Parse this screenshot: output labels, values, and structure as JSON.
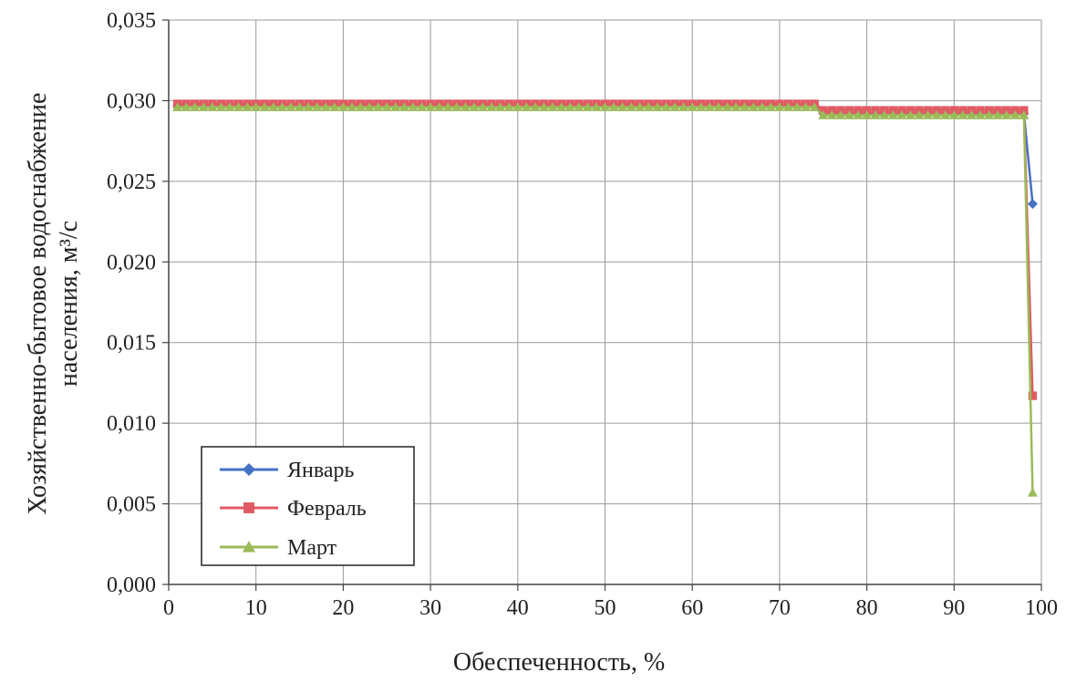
{
  "chart_data": {
    "type": "line",
    "xlabel": "Обеспеченность, %",
    "ylabel_lines": [
      "Хозяйственно-бытовое водоснабжение",
      "населения, м³/с"
    ],
    "xlim": [
      0,
      100
    ],
    "ylim": [
      0,
      0.035
    ],
    "x_ticks": [
      0,
      10,
      20,
      30,
      40,
      50,
      60,
      70,
      80,
      90,
      100
    ],
    "x_tick_labels": [
      "0",
      "10",
      "20",
      "30",
      "40",
      "50",
      "60",
      "70",
      "80",
      "90",
      "100"
    ],
    "y_ticks": [
      0,
      0.005,
      0.01,
      0.015,
      0.02,
      0.025,
      0.03,
      0.035
    ],
    "y_tick_labels": [
      "0,000",
      "0,005",
      "0,010",
      "0,015",
      "0,020",
      "0,025",
      "0,030",
      "0,035"
    ],
    "grid": true,
    "legend_position": "bottom-left",
    "series": [
      {
        "name": "Январь",
        "color": "#4472C4",
        "marker": "diamond",
        "x": [
          1,
          2,
          3,
          4,
          5,
          6,
          7,
          8,
          9,
          10,
          11,
          12,
          13,
          14,
          15,
          16,
          17,
          18,
          19,
          20,
          21,
          22,
          23,
          24,
          25,
          26,
          27,
          28,
          29,
          30,
          31,
          32,
          33,
          34,
          35,
          36,
          37,
          38,
          39,
          40,
          41,
          42,
          43,
          44,
          45,
          46,
          47,
          48,
          49,
          50,
          51,
          52,
          53,
          54,
          55,
          56,
          57,
          58,
          59,
          60,
          61,
          62,
          63,
          64,
          65,
          66,
          67,
          68,
          69,
          70,
          71,
          72,
          73,
          74,
          75,
          76,
          77,
          78,
          79,
          80,
          81,
          82,
          83,
          84,
          85,
          86,
          87,
          88,
          89,
          90,
          91,
          92,
          93,
          94,
          95,
          96,
          97,
          98,
          99
        ],
        "y": [
          0.0297,
          0.0297,
          0.0297,
          0.0297,
          0.0297,
          0.0297,
          0.0297,
          0.0297,
          0.0297,
          0.0297,
          0.0297,
          0.0297,
          0.0297,
          0.0297,
          0.0297,
          0.0297,
          0.0297,
          0.0297,
          0.0297,
          0.0297,
          0.0297,
          0.0297,
          0.0297,
          0.0297,
          0.0297,
          0.0297,
          0.0297,
          0.0297,
          0.0297,
          0.0297,
          0.0297,
          0.0297,
          0.0297,
          0.0297,
          0.0297,
          0.0297,
          0.0297,
          0.0297,
          0.0297,
          0.0297,
          0.0297,
          0.0297,
          0.0297,
          0.0297,
          0.0297,
          0.0297,
          0.0297,
          0.0297,
          0.0297,
          0.0297,
          0.0297,
          0.0297,
          0.0297,
          0.0297,
          0.0297,
          0.0297,
          0.0297,
          0.0297,
          0.0297,
          0.0297,
          0.0297,
          0.0297,
          0.0297,
          0.0297,
          0.0297,
          0.0297,
          0.0297,
          0.0297,
          0.0297,
          0.0297,
          0.0297,
          0.0297,
          0.0297,
          0.0297,
          0.0292,
          0.0292,
          0.0292,
          0.0292,
          0.0292,
          0.0292,
          0.0292,
          0.0292,
          0.0292,
          0.0292,
          0.0292,
          0.0292,
          0.0292,
          0.0292,
          0.0292,
          0.0292,
          0.0292,
          0.0292,
          0.0292,
          0.0292,
          0.0292,
          0.0292,
          0.0292,
          0.0292,
          0.0236
        ]
      },
      {
        "name": "Февраль",
        "color": "#E05A63",
        "marker": "square",
        "x": [
          1,
          2,
          3,
          4,
          5,
          6,
          7,
          8,
          9,
          10,
          11,
          12,
          13,
          14,
          15,
          16,
          17,
          18,
          19,
          20,
          21,
          22,
          23,
          24,
          25,
          26,
          27,
          28,
          29,
          30,
          31,
          32,
          33,
          34,
          35,
          36,
          37,
          38,
          39,
          40,
          41,
          42,
          43,
          44,
          45,
          46,
          47,
          48,
          49,
          50,
          51,
          52,
          53,
          54,
          55,
          56,
          57,
          58,
          59,
          60,
          61,
          62,
          63,
          64,
          65,
          66,
          67,
          68,
          69,
          70,
          71,
          72,
          73,
          74,
          75,
          76,
          77,
          78,
          79,
          80,
          81,
          82,
          83,
          84,
          85,
          86,
          87,
          88,
          89,
          90,
          91,
          92,
          93,
          94,
          95,
          96,
          97,
          98,
          99
        ],
        "y": [
          0.0298,
          0.0298,
          0.0298,
          0.0298,
          0.0298,
          0.0298,
          0.0298,
          0.0298,
          0.0298,
          0.0298,
          0.0298,
          0.0298,
          0.0298,
          0.0298,
          0.0298,
          0.0298,
          0.0298,
          0.0298,
          0.0298,
          0.0298,
          0.0298,
          0.0298,
          0.0298,
          0.0298,
          0.0298,
          0.0298,
          0.0298,
          0.0298,
          0.0298,
          0.0298,
          0.0298,
          0.0298,
          0.0298,
          0.0298,
          0.0298,
          0.0298,
          0.0298,
          0.0298,
          0.0298,
          0.0298,
          0.0298,
          0.0298,
          0.0298,
          0.0298,
          0.0298,
          0.0298,
          0.0298,
          0.0298,
          0.0298,
          0.0298,
          0.0298,
          0.0298,
          0.0298,
          0.0298,
          0.0298,
          0.0298,
          0.0298,
          0.0298,
          0.0298,
          0.0298,
          0.0298,
          0.0298,
          0.0298,
          0.0298,
          0.0298,
          0.0298,
          0.0298,
          0.0298,
          0.0298,
          0.0298,
          0.0298,
          0.0298,
          0.0298,
          0.0298,
          0.0294,
          0.0294,
          0.0294,
          0.0294,
          0.0294,
          0.0294,
          0.0294,
          0.0294,
          0.0294,
          0.0294,
          0.0294,
          0.0294,
          0.0294,
          0.0294,
          0.0294,
          0.0294,
          0.0294,
          0.0294,
          0.0294,
          0.0294,
          0.0294,
          0.0294,
          0.0294,
          0.0294,
          0.0117
        ]
      },
      {
        "name": "Март",
        "color": "#9BBB59",
        "marker": "triangle",
        "x": [
          1,
          2,
          3,
          4,
          5,
          6,
          7,
          8,
          9,
          10,
          11,
          12,
          13,
          14,
          15,
          16,
          17,
          18,
          19,
          20,
          21,
          22,
          23,
          24,
          25,
          26,
          27,
          28,
          29,
          30,
          31,
          32,
          33,
          34,
          35,
          36,
          37,
          38,
          39,
          40,
          41,
          42,
          43,
          44,
          45,
          46,
          47,
          48,
          49,
          50,
          51,
          52,
          53,
          54,
          55,
          56,
          57,
          58,
          59,
          60,
          61,
          62,
          63,
          64,
          65,
          66,
          67,
          68,
          69,
          70,
          71,
          72,
          73,
          74,
          75,
          76,
          77,
          78,
          79,
          80,
          81,
          82,
          83,
          84,
          85,
          86,
          87,
          88,
          89,
          90,
          91,
          92,
          93,
          94,
          95,
          96,
          97,
          98,
          99
        ],
        "y": [
          0.0296,
          0.0296,
          0.0296,
          0.0296,
          0.0296,
          0.0296,
          0.0296,
          0.0296,
          0.0296,
          0.0296,
          0.0296,
          0.0296,
          0.0296,
          0.0296,
          0.0296,
          0.0296,
          0.0296,
          0.0296,
          0.0296,
          0.0296,
          0.0296,
          0.0296,
          0.0296,
          0.0296,
          0.0296,
          0.0296,
          0.0296,
          0.0296,
          0.0296,
          0.0296,
          0.0296,
          0.0296,
          0.0296,
          0.0296,
          0.0296,
          0.0296,
          0.0296,
          0.0296,
          0.0296,
          0.0296,
          0.0296,
          0.0296,
          0.0296,
          0.0296,
          0.0296,
          0.0296,
          0.0296,
          0.0296,
          0.0296,
          0.0296,
          0.0296,
          0.0296,
          0.0296,
          0.0296,
          0.0296,
          0.0296,
          0.0296,
          0.0296,
          0.0296,
          0.0296,
          0.0296,
          0.0296,
          0.0296,
          0.0296,
          0.0296,
          0.0296,
          0.0296,
          0.0296,
          0.0296,
          0.0296,
          0.0296,
          0.0296,
          0.0296,
          0.0296,
          0.0291,
          0.0291,
          0.0291,
          0.0291,
          0.0291,
          0.0291,
          0.0291,
          0.0291,
          0.0291,
          0.0291,
          0.0291,
          0.0291,
          0.0291,
          0.0291,
          0.0291,
          0.0291,
          0.0291,
          0.0291,
          0.0291,
          0.0291,
          0.0291,
          0.0291,
          0.0291,
          0.0291,
          0.0057
        ]
      }
    ]
  }
}
